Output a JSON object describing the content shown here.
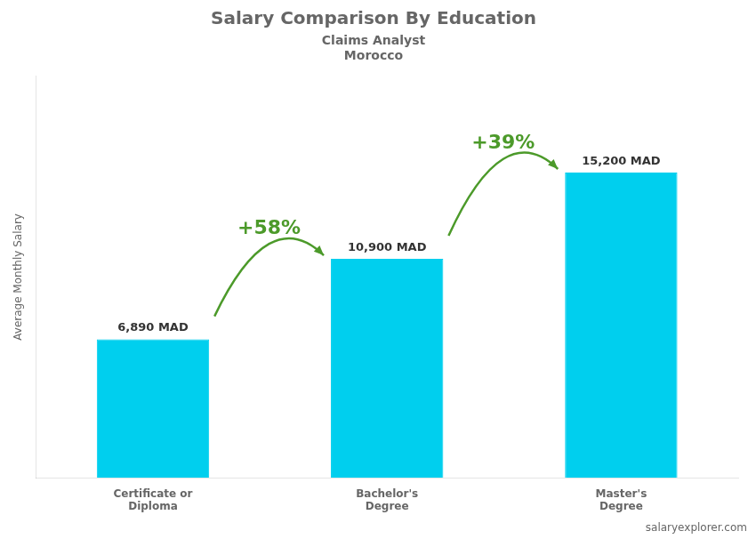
{
  "chart_data": {
    "type": "bar",
    "title": "Salary Comparison By Education",
    "subtitle": [
      "Claims Analyst",
      "Morocco"
    ],
    "ylabel": "Average Monthly Salary",
    "categories": [
      "Certificate or\nDiploma",
      "Bachelor's\nDegree",
      "Master's\nDegree"
    ],
    "values": [
      6890,
      10900,
      15200
    ],
    "value_labels": [
      "6,890 MAD",
      "10,900 MAD",
      "15,200 MAD"
    ],
    "data_labels": true,
    "annotations": [
      "+58%",
      "+39%"
    ],
    "source": "salaryexplorer.com",
    "color": "#00CFEE",
    "ylim": [
      0,
      20000
    ],
    "tick_labels": "x",
    "grid": false
  }
}
